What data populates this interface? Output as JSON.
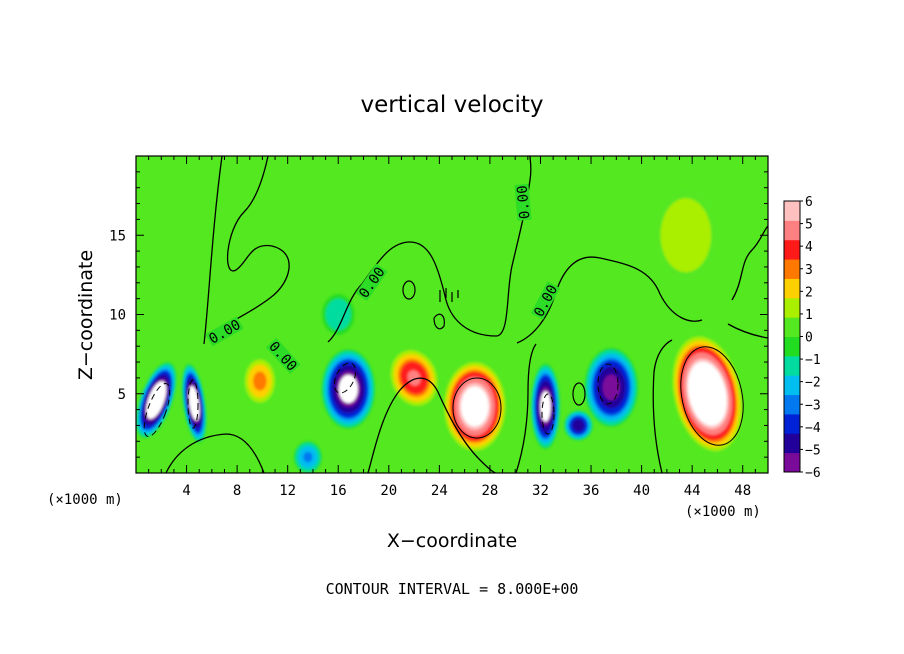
{
  "chart_data": {
    "type": "heatmap",
    "title": "vertical velocity",
    "xlabel": "X−coordinate",
    "ylabel": "Z−coordinate",
    "x_unit_left": "(×1000 m)",
    "x_unit_right": "(×1000 m)",
    "xlim": [
      0,
      50
    ],
    "ylim": [
      0,
      20
    ],
    "xticks": [
      4,
      8,
      12,
      16,
      20,
      24,
      28,
      32,
      36,
      40,
      44,
      48
    ],
    "yticks": [
      5,
      10,
      15
    ],
    "colorbar": {
      "ticks": [
        "6",
        "5",
        "4",
        "3",
        "2",
        "1",
        "0",
        "−1",
        "−2",
        "−3",
        "−4",
        "−5",
        "−6"
      ],
      "range": [
        -6,
        6
      ],
      "colors": [
        "#7a0a9a",
        "#22009a",
        "#0022d6",
        "#0078f0",
        "#00bef0",
        "#00dca0",
        "#22dc22",
        "#54e820",
        "#aaee00",
        "#ffd000",
        "#ff7800",
        "#ff1a1a",
        "#ff8080",
        "#ffc0c0"
      ]
    },
    "background_value": 0,
    "cells": [
      {
        "x": 1.6,
        "z": 4.6,
        "rx": 1.3,
        "rz": 2.6,
        "w": -7.5,
        "tilt": 20
      },
      {
        "x": 4.6,
        "z": 4.4,
        "rx": 0.9,
        "rz": 2.6,
        "w": -7.0,
        "tilt": -8
      },
      {
        "x": 9.8,
        "z": 5.8,
        "rx": 1.4,
        "rz": 1.6,
        "w": 3.2,
        "tilt": 0
      },
      {
        "x": 13.6,
        "z": 1.0,
        "rx": 1.2,
        "rz": 1.1,
        "w": -3.0,
        "tilt": 0
      },
      {
        "x": 16.8,
        "z": 5.3,
        "rx": 2.2,
        "rz": 2.6,
        "w": -6.5,
        "tilt": 0
      },
      {
        "x": 22.0,
        "z": 6.0,
        "rx": 2.0,
        "rz": 2.0,
        "w": 4.5,
        "tilt": -20
      },
      {
        "x": 26.8,
        "z": 4.2,
        "rx": 2.6,
        "rz": 3.0,
        "w": 7.0,
        "tilt": 0
      },
      {
        "x": 32.4,
        "z": 4.2,
        "rx": 1.2,
        "rz": 2.8,
        "w": -6.5,
        "tilt": 0
      },
      {
        "x": 35.0,
        "z": 3.0,
        "rx": 1.2,
        "rz": 1.0,
        "w": -5.0,
        "tilt": 0
      },
      {
        "x": 37.6,
        "z": 5.4,
        "rx": 2.2,
        "rz": 2.6,
        "w": -5.8,
        "tilt": 0
      },
      {
        "x": 45.2,
        "z": 5.0,
        "rx": 2.8,
        "rz": 3.9,
        "w": 8.0,
        "tilt": -12
      },
      {
        "x": 43.5,
        "z": 15.0,
        "rx": 3.0,
        "rz": 3.5,
        "w": 1.5,
        "tilt": 0
      },
      {
        "x": 16.0,
        "z": 10.0,
        "rx": 1.5,
        "rz": 1.5,
        "w": -1.5,
        "tilt": 0
      }
    ],
    "zero_contour_labels": [
      "0.00",
      "0.00",
      "0.00",
      "0.00",
      "0.00"
    ],
    "annotation": "CONTOUR INTERVAL = 8.000E+00"
  }
}
